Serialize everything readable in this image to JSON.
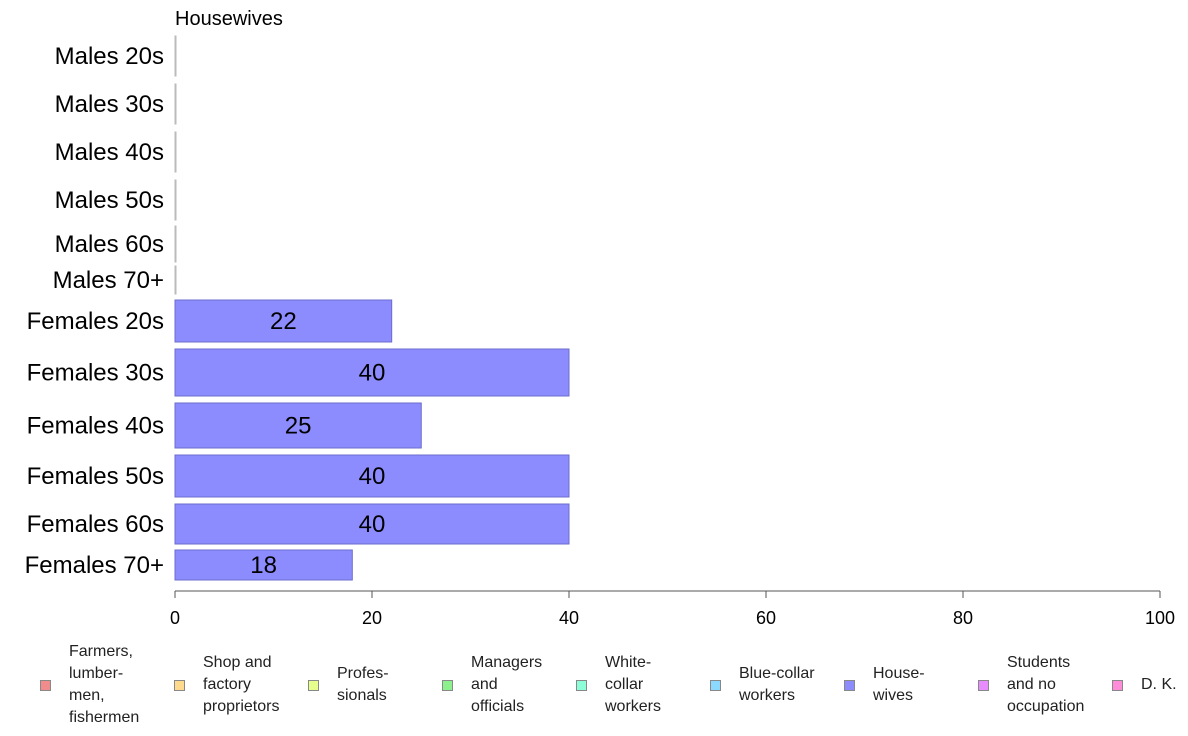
{
  "chart_data": {
    "type": "bar",
    "orientation": "horizontal",
    "title": "Housewives",
    "categories": [
      "Males 20s",
      "Males 30s",
      "Males 40s",
      "Males 50s",
      "Males 60s",
      "Males 70+",
      "Females 20s",
      "Females 30s",
      "Females 40s",
      "Females 50s",
      "Females 60s",
      "Females 70+"
    ],
    "values": [
      0,
      0,
      0,
      0,
      0,
      0,
      22,
      40,
      25,
      40,
      40,
      18
    ],
    "value_labels": [
      "",
      "",
      "",
      "",
      "",
      "",
      "22",
      "40",
      "25",
      "40",
      "40",
      "18"
    ],
    "xlim": [
      0,
      100
    ],
    "xticks": [
      0,
      20,
      40,
      60,
      80,
      100
    ],
    "xtick_labels": [
      "0",
      "20",
      "40",
      "60",
      "80",
      "100"
    ],
    "bar_color": "#8c8cff",
    "bar_edge_color": "#6b6bcc",
    "grid": false,
    "legend": {
      "placement": "bottom",
      "items": [
        {
          "label": "Farmers,\nlumber-\nmen,\nfishermen",
          "color": "#f08c8c"
        },
        {
          "label": "Shop and\nfactory\nproprietors",
          "color": "#ffd98c"
        },
        {
          "label": "Profes-\nsionals",
          "color": "#e6ff8c"
        },
        {
          "label": "Managers\nand\nofficials",
          "color": "#8cf08c"
        },
        {
          "label": "White-\ncollar\nworkers",
          "color": "#8cffd9"
        },
        {
          "label": "Blue-collar\nworkers",
          "color": "#8cd9ff"
        },
        {
          "label": "House-\nwives",
          "color": "#8c8cff"
        },
        {
          "label": "Students\nand no\noccupation",
          "color": "#e68cff"
        },
        {
          "label": "D. K.",
          "color": "#ff8cd9"
        }
      ]
    }
  }
}
